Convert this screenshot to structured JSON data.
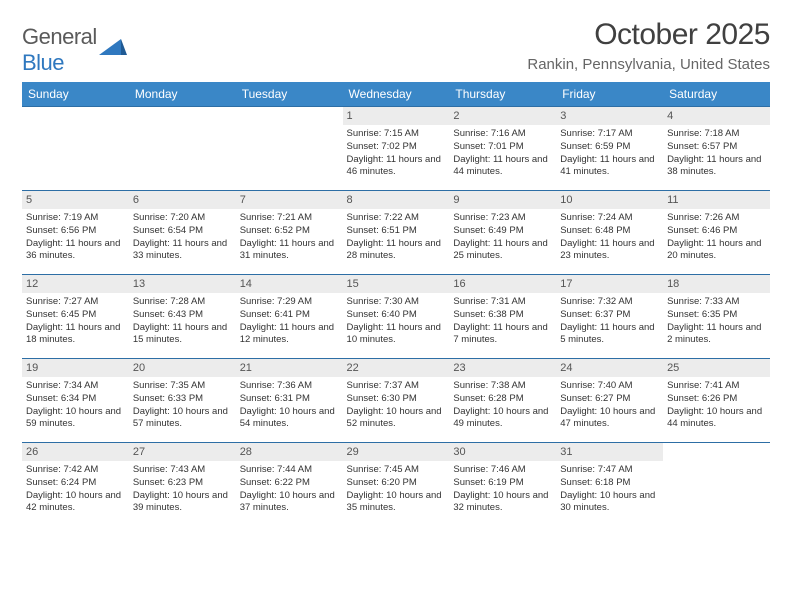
{
  "logo": {
    "line1": "General",
    "line2": "Blue"
  },
  "title": "October 2025",
  "location": "Rankin, Pennsylvania, United States",
  "colors": {
    "header_bg": "#3a87c7",
    "header_text": "#ffffff",
    "row_border": "#2d6ea5",
    "daynum_bg": "#ececec",
    "daynum_text": "#555555",
    "body_text": "#333333",
    "title_text": "#404040",
    "location_text": "#666666",
    "logo_gray": "#5a5a5a",
    "logo_blue": "#2f78bf"
  },
  "day_headers": [
    "Sunday",
    "Monday",
    "Tuesday",
    "Wednesday",
    "Thursday",
    "Friday",
    "Saturday"
  ],
  "weeks": [
    [
      null,
      null,
      null,
      {
        "n": "1",
        "sr": "7:15 AM",
        "ss": "7:02 PM",
        "dl": "11 hours and 46 minutes."
      },
      {
        "n": "2",
        "sr": "7:16 AM",
        "ss": "7:01 PM",
        "dl": "11 hours and 44 minutes."
      },
      {
        "n": "3",
        "sr": "7:17 AM",
        "ss": "6:59 PM",
        "dl": "11 hours and 41 minutes."
      },
      {
        "n": "4",
        "sr": "7:18 AM",
        "ss": "6:57 PM",
        "dl": "11 hours and 38 minutes."
      }
    ],
    [
      {
        "n": "5",
        "sr": "7:19 AM",
        "ss": "6:56 PM",
        "dl": "11 hours and 36 minutes."
      },
      {
        "n": "6",
        "sr": "7:20 AM",
        "ss": "6:54 PM",
        "dl": "11 hours and 33 minutes."
      },
      {
        "n": "7",
        "sr": "7:21 AM",
        "ss": "6:52 PM",
        "dl": "11 hours and 31 minutes."
      },
      {
        "n": "8",
        "sr": "7:22 AM",
        "ss": "6:51 PM",
        "dl": "11 hours and 28 minutes."
      },
      {
        "n": "9",
        "sr": "7:23 AM",
        "ss": "6:49 PM",
        "dl": "11 hours and 25 minutes."
      },
      {
        "n": "10",
        "sr": "7:24 AM",
        "ss": "6:48 PM",
        "dl": "11 hours and 23 minutes."
      },
      {
        "n": "11",
        "sr": "7:26 AM",
        "ss": "6:46 PM",
        "dl": "11 hours and 20 minutes."
      }
    ],
    [
      {
        "n": "12",
        "sr": "7:27 AM",
        "ss": "6:45 PM",
        "dl": "11 hours and 18 minutes."
      },
      {
        "n": "13",
        "sr": "7:28 AM",
        "ss": "6:43 PM",
        "dl": "11 hours and 15 minutes."
      },
      {
        "n": "14",
        "sr": "7:29 AM",
        "ss": "6:41 PM",
        "dl": "11 hours and 12 minutes."
      },
      {
        "n": "15",
        "sr": "7:30 AM",
        "ss": "6:40 PM",
        "dl": "11 hours and 10 minutes."
      },
      {
        "n": "16",
        "sr": "7:31 AM",
        "ss": "6:38 PM",
        "dl": "11 hours and 7 minutes."
      },
      {
        "n": "17",
        "sr": "7:32 AM",
        "ss": "6:37 PM",
        "dl": "11 hours and 5 minutes."
      },
      {
        "n": "18",
        "sr": "7:33 AM",
        "ss": "6:35 PM",
        "dl": "11 hours and 2 minutes."
      }
    ],
    [
      {
        "n": "19",
        "sr": "7:34 AM",
        "ss": "6:34 PM",
        "dl": "10 hours and 59 minutes."
      },
      {
        "n": "20",
        "sr": "7:35 AM",
        "ss": "6:33 PM",
        "dl": "10 hours and 57 minutes."
      },
      {
        "n": "21",
        "sr": "7:36 AM",
        "ss": "6:31 PM",
        "dl": "10 hours and 54 minutes."
      },
      {
        "n": "22",
        "sr": "7:37 AM",
        "ss": "6:30 PM",
        "dl": "10 hours and 52 minutes."
      },
      {
        "n": "23",
        "sr": "7:38 AM",
        "ss": "6:28 PM",
        "dl": "10 hours and 49 minutes."
      },
      {
        "n": "24",
        "sr": "7:40 AM",
        "ss": "6:27 PM",
        "dl": "10 hours and 47 minutes."
      },
      {
        "n": "25",
        "sr": "7:41 AM",
        "ss": "6:26 PM",
        "dl": "10 hours and 44 minutes."
      }
    ],
    [
      {
        "n": "26",
        "sr": "7:42 AM",
        "ss": "6:24 PM",
        "dl": "10 hours and 42 minutes."
      },
      {
        "n": "27",
        "sr": "7:43 AM",
        "ss": "6:23 PM",
        "dl": "10 hours and 39 minutes."
      },
      {
        "n": "28",
        "sr": "7:44 AM",
        "ss": "6:22 PM",
        "dl": "10 hours and 37 minutes."
      },
      {
        "n": "29",
        "sr": "7:45 AM",
        "ss": "6:20 PM",
        "dl": "10 hours and 35 minutes."
      },
      {
        "n": "30",
        "sr": "7:46 AM",
        "ss": "6:19 PM",
        "dl": "10 hours and 32 minutes."
      },
      {
        "n": "31",
        "sr": "7:47 AM",
        "ss": "6:18 PM",
        "dl": "10 hours and 30 minutes."
      },
      null
    ]
  ],
  "labels": {
    "sunrise": "Sunrise: ",
    "sunset": "Sunset: ",
    "daylight": "Daylight: "
  }
}
